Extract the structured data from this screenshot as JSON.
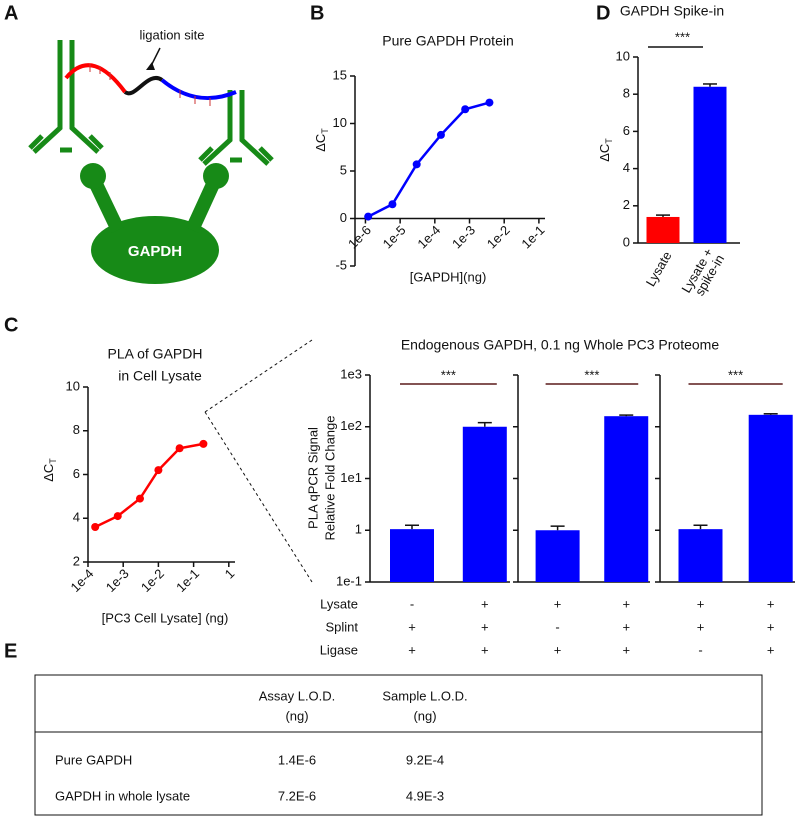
{
  "panel_labels": [
    "A",
    "B",
    "C",
    "D",
    "E"
  ],
  "diagram": {
    "ligation_label": "ligation site",
    "protein_label": "GAPDH"
  },
  "chart_data": [
    {
      "type": "line",
      "title": "Pure GAPDH Protein",
      "x_label": "[GAPDH](ng)",
      "y_label": "ΔC",
      "y_label_subscript": "T",
      "color": "#0000ff",
      "x_log": true,
      "x": [
        1.2e-06,
        6e-06,
        3e-05,
        0.00015,
        0.00075,
        0.00375
      ],
      "y": [
        0.2,
        1.5,
        5.7,
        8.8,
        11.5,
        12.2
      ],
      "xlim": [
        5e-07,
        0.15
      ],
      "xticks": [
        {
          "value": 1e-06,
          "label": "1e-6"
        },
        {
          "value": 1e-05,
          "label": "1e-5"
        },
        {
          "value": 0.0001,
          "label": "1e-4"
        },
        {
          "value": 0.001,
          "label": "1e-3"
        },
        {
          "value": 0.01,
          "label": "1e-2"
        },
        {
          "value": 0.1,
          "label": "1e-1"
        }
      ],
      "ylim": [
        -5,
        15
      ],
      "yticks": [
        -5,
        0,
        5,
        10,
        15
      ]
    },
    {
      "type": "line",
      "title_lines": [
        "PLA of GAPDH",
        "in Cell Lysate"
      ],
      "x_label": "[PC3 Cell Lysate] (ng)",
      "y_label": "ΔC",
      "y_label_subscript": "T",
      "color": "#ff0000",
      "x_log": true,
      "x": [
        0.00016,
        0.0007,
        0.003,
        0.01,
        0.04,
        0.19
      ],
      "y": [
        3.6,
        4.1,
        4.9,
        6.2,
        7.2,
        7.4
      ],
      "xlim": [
        0.0001,
        1.5
      ],
      "xticks": [
        {
          "value": 0.0001,
          "label": "1e-4"
        },
        {
          "value": 0.001,
          "label": "1e-3"
        },
        {
          "value": 0.01,
          "label": "1e-2"
        },
        {
          "value": 0.1,
          "label": "1e-1"
        },
        1
      ],
      "ylim": [
        2,
        10
      ],
      "yticks": [
        2,
        4,
        6,
        8,
        10
      ]
    },
    {
      "type": "bar",
      "title": "Endogenous GAPDH, 0.1 ng Whole PC3 Proteome",
      "y_label_lines": [
        "PLA qPCR Signal",
        "Relative Fold Change"
      ],
      "color": "#0000ff",
      "y_log": true,
      "ylim": [
        0.1,
        1000
      ],
      "yticks": [
        {
          "value": 0.1,
          "label": "1e-1"
        },
        1,
        {
          "value": 10,
          "label": "1e1"
        },
        {
          "value": 100,
          "label": "1e2"
        },
        {
          "value": 1000,
          "label": "1e3"
        }
      ],
      "condition_labels": [
        "Lysate",
        "Splint",
        "Ligase"
      ],
      "panels": [
        {
          "values": [
            1.05,
            100
          ],
          "errors": [
            0.2,
            20
          ],
          "significance": "***",
          "conditions": [
            [
              "-",
              "+"
            ],
            [
              "+",
              "+"
            ],
            [
              "+",
              "+"
            ]
          ]
        },
        {
          "values": [
            1.0,
            160
          ],
          "errors": [
            0.2,
            8
          ],
          "significance": "***",
          "conditions": [
            [
              "+",
              "+"
            ],
            [
              "-",
              "+"
            ],
            [
              "+",
              "+"
            ]
          ]
        },
        {
          "values": [
            1.05,
            170
          ],
          "errors": [
            0.2,
            8
          ],
          "significance": "***",
          "conditions": [
            [
              "+",
              "+"
            ],
            [
              "+",
              "+"
            ],
            [
              "-",
              "+"
            ]
          ]
        }
      ]
    },
    {
      "type": "bar",
      "title": "GAPDH Spike-in",
      "y_label": "ΔC",
      "y_label_subscript": "T",
      "categories": [
        [
          "Lysate"
        ],
        [
          "Lysate +",
          "spike-in"
        ]
      ],
      "values": [
        1.4,
        8.4
      ],
      "errors": [
        0.1,
        0.15
      ],
      "colors": [
        "#ff0000",
        "#0000ff"
      ],
      "significance": "***",
      "ylim": [
        0,
        10
      ],
      "yticks": [
        0,
        2,
        4,
        6,
        8,
        10
      ]
    }
  ],
  "table": {
    "header": [
      [
        "Assay L.O.D.",
        "(ng)"
      ],
      [
        "Sample L.O.D.",
        "(ng)"
      ]
    ],
    "rows": [
      [
        "Pure GAPDH",
        "1.4E-6",
        "9.2E-4"
      ],
      [
        "GAPDH in whole lysate",
        "7.2E-6",
        "4.9E-3"
      ]
    ]
  }
}
